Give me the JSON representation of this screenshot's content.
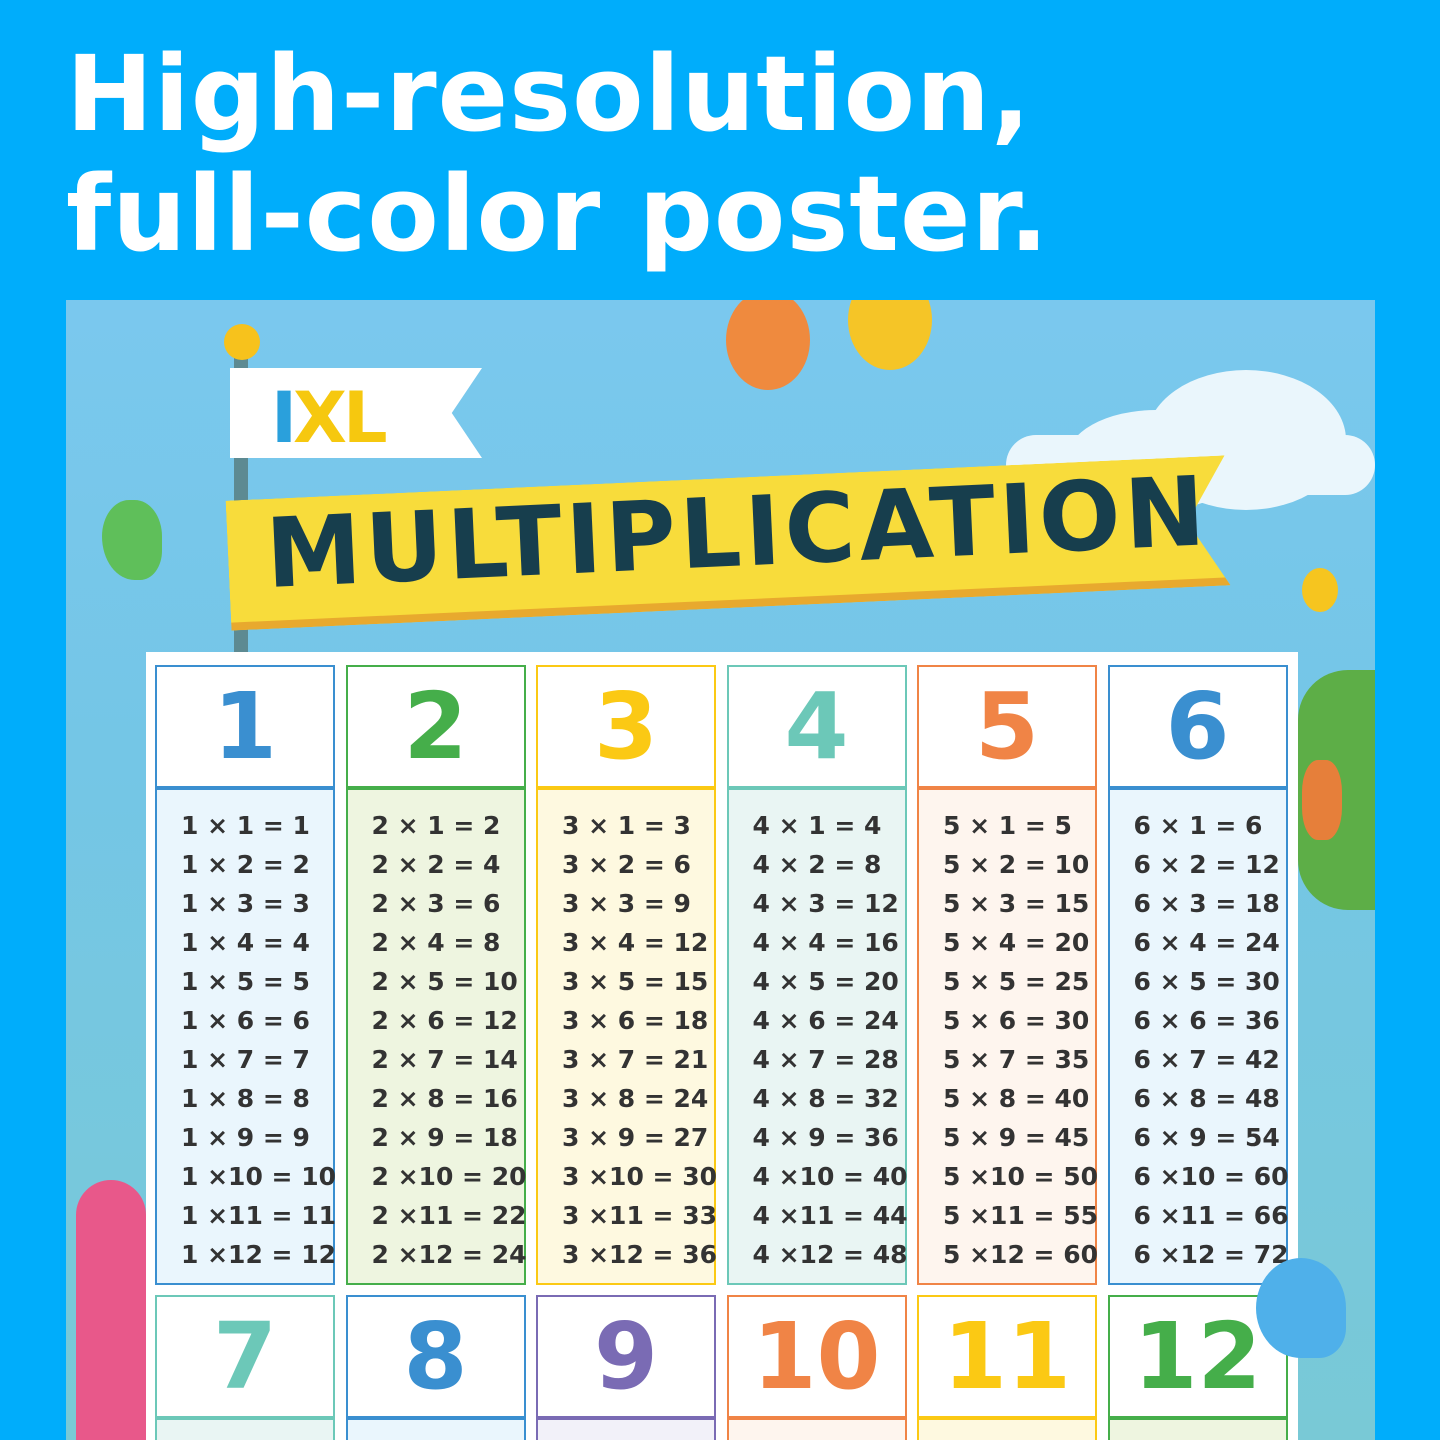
{
  "headline": {
    "line1": "High-resolution,",
    "line2": "full-color poster."
  },
  "poster": {
    "logo_i": "I",
    "logo_xl": "XL",
    "title": "MULTIPLICATION"
  },
  "tables": [
    {
      "n": "1",
      "color": "#3a8fd0",
      "bg": "#eaf6fd"
    },
    {
      "n": "2",
      "color": "#45ae4a",
      "bg": "#eef5e0"
    },
    {
      "n": "3",
      "color": "#fbc914",
      "bg": "#fef9e0"
    },
    {
      "n": "4",
      "color": "#6cc8b8",
      "bg": "#e9f5f3"
    },
    {
      "n": "5",
      "color": "#f08446",
      "bg": "#fef5ee"
    },
    {
      "n": "6",
      "color": "#3a8fd0",
      "bg": "#eaf6fd"
    },
    {
      "n": "7",
      "color": "#6cc8b8",
      "bg": "#e9f5f3"
    },
    {
      "n": "8",
      "color": "#3a8fd0",
      "bg": "#eaf6fd"
    },
    {
      "n": "9",
      "color": "#7a6bb4",
      "bg": "#f2f1f9"
    },
    {
      "n": "10",
      "color": "#f08446",
      "bg": "#fef5ee"
    },
    {
      "n": "11",
      "color": "#fbc914",
      "bg": "#fef9e0"
    },
    {
      "n": "12",
      "color": "#45ae4a",
      "bg": "#eef5e0"
    }
  ],
  "equations": [
    [
      "1 × 1 = 1",
      "1 × 2 = 2",
      "1 × 3 = 3",
      "1 × 4 = 4",
      "1 × 5 = 5",
      "1 × 6 = 6",
      "1 × 7 = 7",
      "1 × 8 = 8",
      "1 × 9 = 9",
      "1 ×10 = 10",
      "1 ×11 = 11",
      "1 ×12 = 12"
    ],
    [
      "2 × 1 = 2",
      "2 × 2 = 4",
      "2 × 3 = 6",
      "2 × 4 = 8",
      "2 × 5 = 10",
      "2 × 6 = 12",
      "2 × 7 = 14",
      "2 × 8 = 16",
      "2 × 9 = 18",
      "2 ×10 = 20",
      "2 ×11 = 22",
      "2 ×12 = 24"
    ],
    [
      "3 × 1 = 3",
      "3 × 2 = 6",
      "3 × 3 = 9",
      "3 × 4 = 12",
      "3 × 5 = 15",
      "3 × 6 = 18",
      "3 × 7 = 21",
      "3 × 8 = 24",
      "3 × 9 = 27",
      "3 ×10 = 30",
      "3 ×11 = 33",
      "3 ×12 = 36"
    ],
    [
      "4 × 1 = 4",
      "4 × 2 = 8",
      "4 × 3 = 12",
      "4 × 4 = 16",
      "4 × 5 = 20",
      "4 × 6 = 24",
      "4 × 7 = 28",
      "4 × 8 = 32",
      "4 × 9 = 36",
      "4 ×10 = 40",
      "4 ×11 = 44",
      "4 ×12 = 48"
    ],
    [
      "5 × 1 = 5",
      "5 × 2 = 10",
      "5 × 3 = 15",
      "5 × 4 = 20",
      "5 × 5 = 25",
      "5 × 6 = 30",
      "5 × 7 = 35",
      "5 × 8 = 40",
      "5 × 9 = 45",
      "5 ×10 = 50",
      "5 ×11 = 55",
      "5 ×12 = 60"
    ],
    [
      "6 × 1 = 6",
      "6 × 2 = 12",
      "6 × 3 = 18",
      "6 × 4 = 24",
      "6 × 5 = 30",
      "6 × 6 = 36",
      "6 × 7 = 42",
      "6 × 8 = 48",
      "6 × 9 = 54",
      "6 ×10 = 60",
      "6 ×11 = 66",
      "6 ×12 = 72"
    ]
  ]
}
